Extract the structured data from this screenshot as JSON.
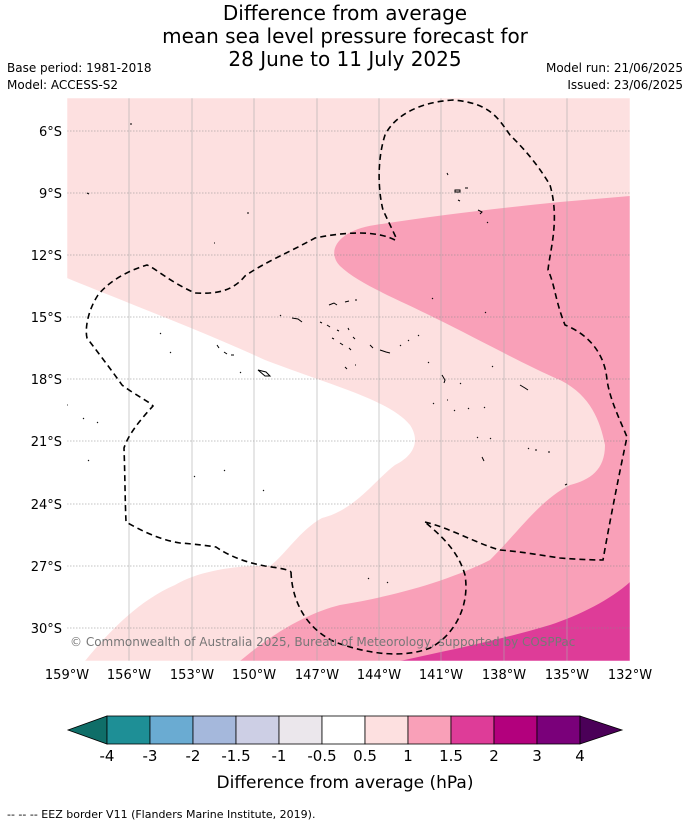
{
  "title": {
    "line1": "Difference from average",
    "line2": "mean sea level pressure forecast for",
    "line3": "28 June to 11 July 2025"
  },
  "meta": {
    "base_period": "Base period: 1981-2018",
    "model": "Model: ACCESS-S2",
    "model_run": "Model run: 21/06/2025",
    "issued": "Issued: 23/06/2025"
  },
  "map": {
    "lat_labels": [
      "6°S",
      "9°S",
      "12°S",
      "15°S",
      "18°S",
      "21°S",
      "24°S",
      "27°S",
      "30°S"
    ],
    "lon_labels": [
      "159°W",
      "156°W",
      "153°W",
      "150°W",
      "147°W",
      "144°W",
      "141°W",
      "138°W",
      "135°W",
      "132°W"
    ],
    "copyright": "© Commonwealth of Australia 2025, Bureau of Meteorology, supported by COSPPac",
    "colors": {
      "band_0_5_to_1": "#fde0e0",
      "band_1_to_1_5": "#f9a0b8",
      "band_1_5_to_2": "#de3c98",
      "neutral": "#ffffff"
    }
  },
  "colorbar": {
    "tick_labels": [
      "-4",
      "-3",
      "-2",
      "-1.5",
      "-1",
      "-0.5",
      "0.5",
      "1",
      "1.5",
      "2",
      "3",
      "4"
    ],
    "colors": [
      "#0f6e68",
      "#1e8f96",
      "#6aabd2",
      "#a5b8dc",
      "#cdcfe5",
      "#ebe7ec",
      "#ffffff",
      "#fde0e0",
      "#f9a0b8",
      "#de3c98",
      "#b3007d",
      "#7a007a",
      "#4b0058"
    ],
    "label": "Difference from average (hPa)"
  },
  "footer": {
    "legend": "--  --  -- EEZ border V11 (Flanders Marine Institute, 2019)."
  }
}
